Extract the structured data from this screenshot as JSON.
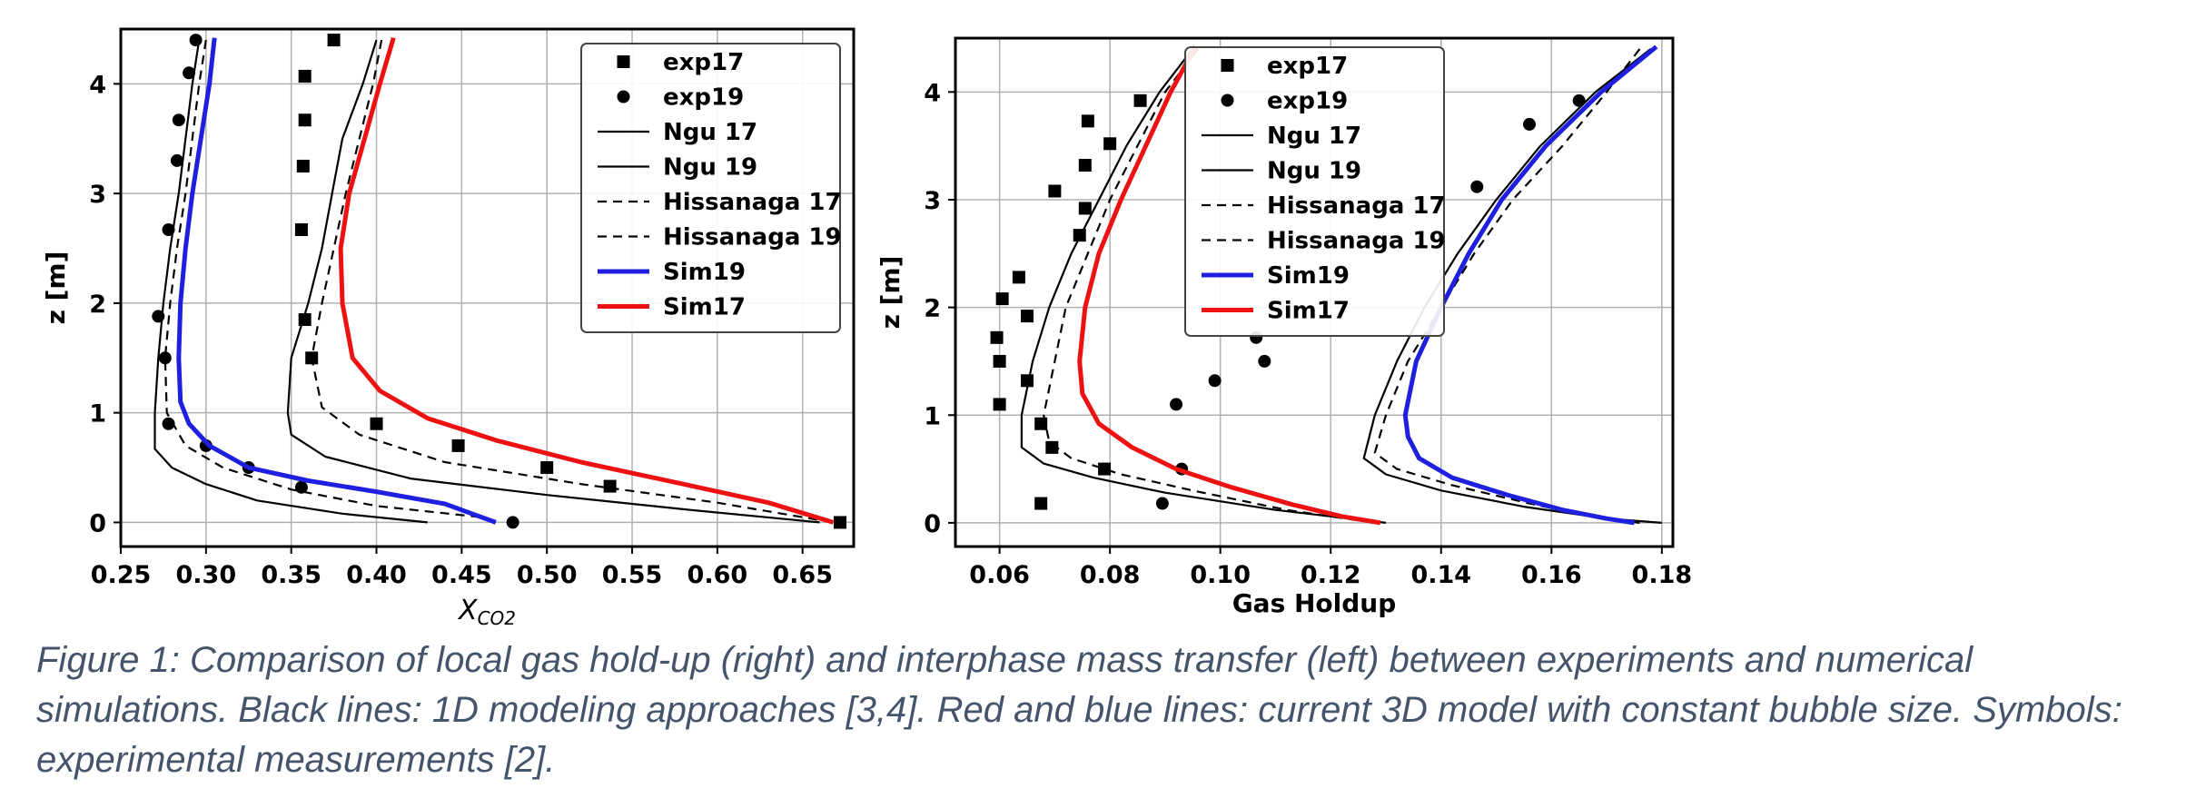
{
  "caption": "Figure 1: Comparison of local gas hold-up (right) and interphase mass transfer (left) between experiments and numerical simulations. Black lines: 1D modeling approaches [3,4]. Red and blue lines: current 3D model with constant bubble size. Symbols: experimental measurements [2].",
  "colors": {
    "sim19": "#1f1fe0",
    "sim17": "#ee1111",
    "black": "#000000",
    "grid": "#b0b0b0"
  },
  "chart_data": [
    {
      "type": "line",
      "xlabel_main": "X",
      "xlabel_sub": "CO2",
      "ylabel": "z [m]",
      "xlim": [
        0.25,
        0.68
      ],
      "ylim": [
        -0.22,
        4.5
      ],
      "xticks": [
        "0.25",
        "0.30",
        "0.35",
        "0.40",
        "0.45",
        "0.50",
        "0.55",
        "0.60",
        "0.65"
      ],
      "xtick_values": [
        0.25,
        0.3,
        0.35,
        0.4,
        0.45,
        0.5,
        0.55,
        0.6,
        0.65
      ],
      "yticks": [
        "0",
        "1",
        "2",
        "3",
        "4"
      ],
      "ytick_values": [
        0,
        1,
        2,
        3,
        4
      ],
      "grid": true,
      "legend_position": "top-right",
      "series": [
        {
          "name": "exp17",
          "style": "square",
          "points": [
            [
              0.375,
              4.4
            ],
            [
              0.358,
              4.07
            ],
            [
              0.358,
              3.67
            ],
            [
              0.357,
              3.25
            ],
            [
              0.356,
              2.67
            ],
            [
              0.358,
              1.85
            ],
            [
              0.362,
              1.5
            ],
            [
              0.4,
              0.9
            ],
            [
              0.448,
              0.7
            ],
            [
              0.5,
              0.5
            ],
            [
              0.537,
              0.33
            ],
            [
              0.672,
              0.0
            ]
          ]
        },
        {
          "name": "exp19",
          "style": "circle",
          "points": [
            [
              0.294,
              4.4
            ],
            [
              0.29,
              4.1
            ],
            [
              0.284,
              3.67
            ],
            [
              0.283,
              3.3
            ],
            [
              0.278,
              2.67
            ],
            [
              0.272,
              1.88
            ],
            [
              0.276,
              1.5
            ],
            [
              0.278,
              0.9
            ],
            [
              0.3,
              0.7
            ],
            [
              0.325,
              0.5
            ],
            [
              0.356,
              0.32
            ],
            [
              0.48,
              0.0
            ]
          ]
        },
        {
          "name": "Ngu 17",
          "style": "solid",
          "color": "#000000",
          "points": [
            [
              0.4,
              4.4
            ],
            [
              0.392,
              4.0
            ],
            [
              0.38,
              3.5
            ],
            [
              0.374,
              3.0
            ],
            [
              0.368,
              2.5
            ],
            [
              0.36,
              2.0
            ],
            [
              0.35,
              1.5
            ],
            [
              0.348,
              1.0
            ],
            [
              0.35,
              0.8
            ],
            [
              0.37,
              0.6
            ],
            [
              0.42,
              0.4
            ],
            [
              0.5,
              0.25
            ],
            [
              0.58,
              0.12
            ],
            [
              0.66,
              0.0
            ]
          ]
        },
        {
          "name": "Ngu 19",
          "style": "solid",
          "color": "#000000",
          "points": [
            [
              0.296,
              4.4
            ],
            [
              0.292,
              4.0
            ],
            [
              0.288,
              3.5
            ],
            [
              0.284,
              3.0
            ],
            [
              0.279,
              2.5
            ],
            [
              0.275,
              2.0
            ],
            [
              0.272,
              1.5
            ],
            [
              0.27,
              1.0
            ],
            [
              0.27,
              0.67
            ],
            [
              0.28,
              0.5
            ],
            [
              0.3,
              0.35
            ],
            [
              0.33,
              0.2
            ],
            [
              0.38,
              0.08
            ],
            [
              0.43,
              0.0
            ]
          ]
        },
        {
          "name": "Hissanaga 17",
          "style": "dashed",
          "color": "#000000",
          "points": [
            [
              0.403,
              4.4
            ],
            [
              0.398,
              4.0
            ],
            [
              0.39,
              3.5
            ],
            [
              0.382,
              3.0
            ],
            [
              0.375,
              2.5
            ],
            [
              0.368,
              2.0
            ],
            [
              0.362,
              1.5
            ],
            [
              0.368,
              1.05
            ],
            [
              0.39,
              0.8
            ],
            [
              0.44,
              0.55
            ],
            [
              0.52,
              0.35
            ],
            [
              0.6,
              0.18
            ],
            [
              0.668,
              0.0
            ]
          ]
        },
        {
          "name": "Hissanaga 19",
          "style": "dashed",
          "color": "#000000",
          "points": [
            [
              0.3,
              4.4
            ],
            [
              0.296,
              4.0
            ],
            [
              0.292,
              3.5
            ],
            [
              0.288,
              3.0
            ],
            [
              0.283,
              2.5
            ],
            [
              0.279,
              2.0
            ],
            [
              0.276,
              1.5
            ],
            [
              0.277,
              1.0
            ],
            [
              0.288,
              0.7
            ],
            [
              0.31,
              0.5
            ],
            [
              0.35,
              0.3
            ],
            [
              0.4,
              0.15
            ],
            [
              0.46,
              0.05
            ],
            [
              0.47,
              0.0
            ]
          ]
        },
        {
          "name": "Sim19",
          "style": "solid-thick",
          "color": "#1f1fe0",
          "points": [
            [
              0.305,
              4.42
            ],
            [
              0.302,
              4.0
            ],
            [
              0.297,
              3.5
            ],
            [
              0.292,
              3.0
            ],
            [
              0.288,
              2.5
            ],
            [
              0.285,
              2.0
            ],
            [
              0.284,
              1.5
            ],
            [
              0.285,
              1.1
            ],
            [
              0.29,
              0.9
            ],
            [
              0.302,
              0.7
            ],
            [
              0.325,
              0.5
            ],
            [
              0.36,
              0.38
            ],
            [
              0.4,
              0.28
            ],
            [
              0.44,
              0.17
            ],
            [
              0.47,
              0.0
            ]
          ]
        },
        {
          "name": "Sim17",
          "style": "solid-thick",
          "color": "#ee1111",
          "points": [
            [
              0.41,
              4.42
            ],
            [
              0.402,
              4.0
            ],
            [
              0.393,
              3.5
            ],
            [
              0.384,
              3.0
            ],
            [
              0.379,
              2.5
            ],
            [
              0.38,
              2.0
            ],
            [
              0.386,
              1.5
            ],
            [
              0.402,
              1.2
            ],
            [
              0.43,
              0.95
            ],
            [
              0.47,
              0.75
            ],
            [
              0.52,
              0.55
            ],
            [
              0.58,
              0.35
            ],
            [
              0.63,
              0.18
            ],
            [
              0.668,
              0.0
            ]
          ]
        }
      ]
    },
    {
      "type": "line",
      "xlabel": "Gas Holdup",
      "ylabel": "z [m]",
      "xlim": [
        0.052,
        0.182
      ],
      "ylim": [
        -0.22,
        4.5
      ],
      "xticks": [
        "0.06",
        "0.08",
        "0.10",
        "0.12",
        "0.14",
        "0.16",
        "0.18"
      ],
      "xtick_values": [
        0.06,
        0.08,
        0.1,
        0.12,
        0.14,
        0.16,
        0.18
      ],
      "yticks": [
        "0",
        "1",
        "2",
        "3",
        "4"
      ],
      "ytick_values": [
        0,
        1,
        2,
        3,
        4
      ],
      "grid": true,
      "legend_position": "top-left",
      "series": [
        {
          "name": "exp17",
          "style": "square",
          "points": [
            [
              0.0855,
              3.92
            ],
            [
              0.076,
              3.73
            ],
            [
              0.08,
              3.52
            ],
            [
              0.0755,
              3.32
            ],
            [
              0.07,
              3.08
            ],
            [
              0.0755,
              2.92
            ],
            [
              0.0745,
              2.67
            ],
            [
              0.0635,
              2.28
            ],
            [
              0.0605,
              2.08
            ],
            [
              0.065,
              1.92
            ],
            [
              0.0595,
              1.72
            ],
            [
              0.06,
              1.5
            ],
            [
              0.065,
              1.32
            ],
            [
              0.06,
              1.1
            ],
            [
              0.0675,
              0.92
            ],
            [
              0.0695,
              0.7
            ],
            [
              0.079,
              0.5
            ],
            [
              0.0675,
              0.18
            ]
          ]
        },
        {
          "name": "exp19",
          "style": "circle",
          "points": [
            [
              0.165,
              3.92
            ],
            [
              0.156,
              3.7
            ],
            [
              0.1465,
              3.12
            ],
            [
              0.1065,
              1.72
            ],
            [
              0.108,
              1.5
            ],
            [
              0.099,
              1.32
            ],
            [
              0.092,
              1.1
            ],
            [
              0.093,
              0.5
            ],
            [
              0.0895,
              0.18
            ]
          ]
        },
        {
          "name": "Ngu 17",
          "style": "solid",
          "color": "#000000",
          "points": [
            [
              0.095,
              4.4
            ],
            [
              0.089,
              4.0
            ],
            [
              0.083,
              3.5
            ],
            [
              0.078,
              3.0
            ],
            [
              0.073,
              2.5
            ],
            [
              0.069,
              2.0
            ],
            [
              0.066,
              1.5
            ],
            [
              0.064,
              1.0
            ],
            [
              0.064,
              0.7
            ],
            [
              0.068,
              0.55
            ],
            [
              0.077,
              0.42
            ],
            [
              0.09,
              0.28
            ],
            [
              0.11,
              0.12
            ],
            [
              0.13,
              0.0
            ]
          ]
        },
        {
          "name": "Ngu 19",
          "style": "solid",
          "color": "#000000",
          "points": [
            [
              0.178,
              4.4
            ],
            [
              0.168,
              4.0
            ],
            [
              0.158,
              3.5
            ],
            [
              0.15,
              3.0
            ],
            [
              0.143,
              2.5
            ],
            [
              0.137,
              2.0
            ],
            [
              0.132,
              1.5
            ],
            [
              0.128,
              1.0
            ],
            [
              0.126,
              0.6
            ],
            [
              0.13,
              0.45
            ],
            [
              0.14,
              0.3
            ],
            [
              0.155,
              0.15
            ],
            [
              0.17,
              0.04
            ],
            [
              0.18,
              0.0
            ]
          ]
        },
        {
          "name": "Hissanaga 17",
          "style": "dashed",
          "color": "#000000",
          "points": [
            [
              0.096,
              4.4
            ],
            [
              0.09,
              4.0
            ],
            [
              0.085,
              3.5
            ],
            [
              0.08,
              3.0
            ],
            [
              0.076,
              2.5
            ],
            [
              0.072,
              2.0
            ],
            [
              0.07,
              1.5
            ],
            [
              0.068,
              1.0
            ],
            [
              0.069,
              0.75
            ],
            [
              0.073,
              0.6
            ],
            [
              0.082,
              0.45
            ],
            [
              0.095,
              0.3
            ],
            [
              0.112,
              0.12
            ],
            [
              0.128,
              0.0
            ]
          ]
        },
        {
          "name": "Hissanaga 19",
          "style": "dashed",
          "color": "#000000",
          "points": [
            [
              0.176,
              4.4
            ],
            [
              0.17,
              4.0
            ],
            [
              0.162,
              3.5
            ],
            [
              0.153,
              3.0
            ],
            [
              0.146,
              2.5
            ],
            [
              0.14,
              2.0
            ],
            [
              0.134,
              1.5
            ],
            [
              0.13,
              1.0
            ],
            [
              0.128,
              0.65
            ],
            [
              0.132,
              0.5
            ],
            [
              0.142,
              0.35
            ],
            [
              0.156,
              0.18
            ],
            [
              0.168,
              0.05
            ],
            [
              0.176,
              0.0
            ]
          ]
        },
        {
          "name": "Sim19",
          "style": "solid-thick",
          "color": "#1f1fe0",
          "points": [
            [
              0.179,
              4.42
            ],
            [
              0.169,
              4.0
            ],
            [
              0.159,
              3.5
            ],
            [
              0.151,
              3.0
            ],
            [
              0.145,
              2.5
            ],
            [
              0.14,
              2.0
            ],
            [
              0.1355,
              1.5
            ],
            [
              0.1335,
              1.0
            ],
            [
              0.134,
              0.8
            ],
            [
              0.136,
              0.6
            ],
            [
              0.142,
              0.42
            ],
            [
              0.152,
              0.26
            ],
            [
              0.162,
              0.12
            ],
            [
              0.17,
              0.04
            ],
            [
              0.175,
              0.0
            ]
          ]
        },
        {
          "name": "Sim17",
          "style": "solid-thick",
          "color": "#ee1111",
          "points": [
            [
              0.0955,
              4.42
            ],
            [
              0.091,
              4.0
            ],
            [
              0.0865,
              3.5
            ],
            [
              0.082,
              3.0
            ],
            [
              0.078,
              2.5
            ],
            [
              0.0755,
              2.0
            ],
            [
              0.0745,
              1.5
            ],
            [
              0.075,
              1.2
            ],
            [
              0.078,
              0.92
            ],
            [
              0.084,
              0.7
            ],
            [
              0.092,
              0.5
            ],
            [
              0.102,
              0.33
            ],
            [
              0.113,
              0.17
            ],
            [
              0.122,
              0.06
            ],
            [
              0.129,
              0.0
            ]
          ]
        }
      ]
    }
  ]
}
